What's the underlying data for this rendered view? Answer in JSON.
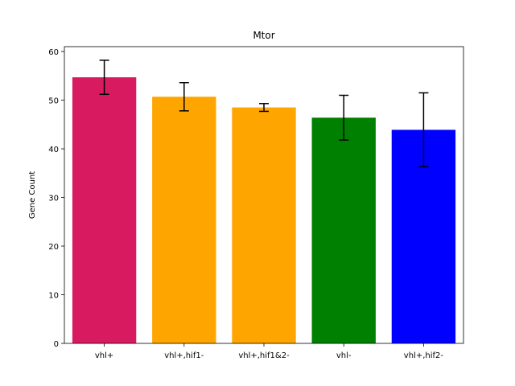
{
  "chart_data": {
    "type": "bar",
    "title": "Mtor",
    "xlabel": "",
    "ylabel": "Gene Count",
    "ylim": [
      0,
      61
    ],
    "yticks": [
      0,
      10,
      20,
      30,
      40,
      50,
      60
    ],
    "categories": [
      "vhl+",
      "vhl+,hif1-",
      "vhl+,hif1&2-",
      "vhl-",
      "vhl+,hif2-"
    ],
    "values": [
      54.7,
      50.7,
      48.5,
      46.4,
      43.9
    ],
    "errors": [
      3.5,
      2.9,
      0.8,
      4.6,
      7.6
    ],
    "colors": [
      "#d81b60",
      "#ffa500",
      "#ffa500",
      "#008000",
      "#0000ff"
    ],
    "grid": false
  }
}
